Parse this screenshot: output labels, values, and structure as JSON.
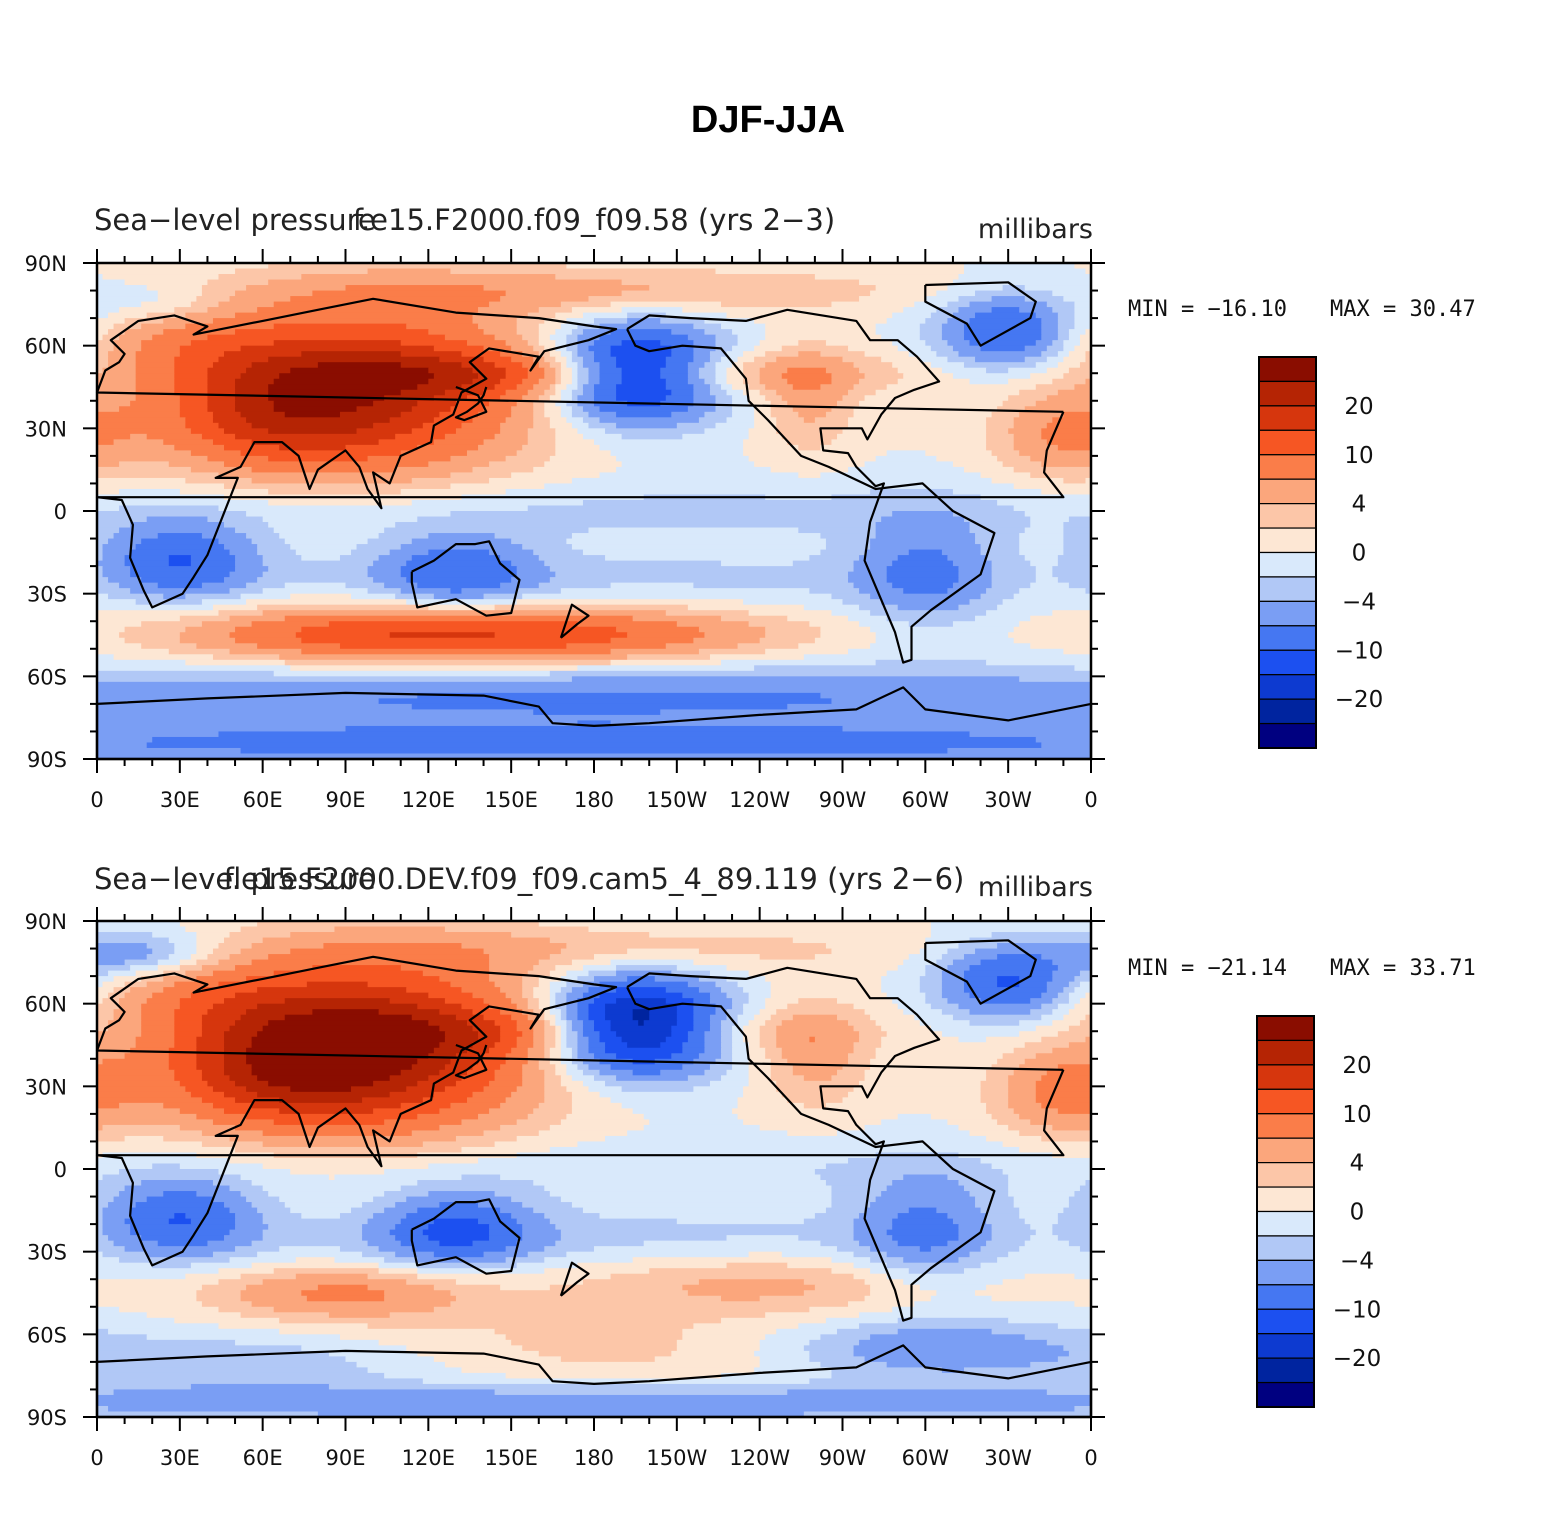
{
  "figure_title": "DJF-JJA",
  "colors": {
    "scale": [
      "#000080",
      "#00249f",
      "#0d3ad0",
      "#1c50f0",
      "#4577f2",
      "#7a9ef4",
      "#b1c8f6",
      "#d9e9fb",
      "#fde7d4",
      "#fcc6a8",
      "#fba67c",
      "#fa7d49",
      "#f65623",
      "#d6360d",
      "#b52404",
      "#8a0d00"
    ],
    "coast": "#000000"
  },
  "chart_data": {
    "type": "filled-contour-map",
    "variable": "Sea-level pressure",
    "units": "millibars",
    "colorbar_labels": [
      "20",
      "10",
      "4",
      "0",
      "−4",
      "−10",
      "−20"
    ],
    "x_ticks": [
      "0",
      "30E",
      "60E",
      "90E",
      "120E",
      "150E",
      "180",
      "150W",
      "120W",
      "90W",
      "60W",
      "30W",
      "0"
    ],
    "y_ticks": [
      "90N",
      "60N",
      "30N",
      "0",
      "30S",
      "60S",
      "90S"
    ],
    "xlim": [
      0,
      360
    ],
    "ylim": [
      -90,
      90
    ],
    "panels": [
      {
        "left_title": "Sea−level pressure",
        "center_title": "f.e15.F2000.f09_f09.58 (yrs 2−3)",
        "right_title": "millibars",
        "min_label": "MIN = −16.10",
        "max_label": "MAX =  30.47",
        "min": -16.1,
        "max": 30.47,
        "features": [
          {
            "lon": 100,
            "lat": 45,
            "sx": 42,
            "sy": 22,
            "amp": 24
          },
          {
            "lon": 60,
            "lat": 35,
            "sx": 30,
            "sy": 14,
            "amp": 14
          },
          {
            "lon": 30,
            "lat": 62,
            "sx": 30,
            "sy": 10,
            "amp": 8
          },
          {
            "lon": 180,
            "lat": 80,
            "sx": 80,
            "sy": 6,
            "amp": 7
          },
          {
            "lon": 258,
            "lat": 40,
            "sx": 12,
            "sy": 14,
            "amp": 7
          },
          {
            "lon": 350,
            "lat": 28,
            "sx": 18,
            "sy": 12,
            "amp": 10
          },
          {
            "lon": 180,
            "lat": 50,
            "sx": 70,
            "sy": 6,
            "amp": 12
          },
          {
            "lon": 195,
            "lat": 50,
            "sx": 22,
            "sy": 12,
            "amp": -30
          },
          {
            "lon": 330,
            "lat": 65,
            "sx": 18,
            "sy": 10,
            "amp": -16
          },
          {
            "lon": 22,
            "lat": 75,
            "sx": 18,
            "sy": 6,
            "amp": -5
          },
          {
            "lon": 180,
            "lat": 0,
            "sx": 200,
            "sy": 8,
            "amp": -4
          },
          {
            "lon": 30,
            "lat": -18,
            "sx": 20,
            "sy": 10,
            "amp": -14
          },
          {
            "lon": 130,
            "lat": -22,
            "sx": 20,
            "sy": 10,
            "amp": -12
          },
          {
            "lon": 300,
            "lat": -22,
            "sx": 18,
            "sy": 14,
            "amp": -10
          },
          {
            "lon": 180,
            "lat": -25,
            "sx": 120,
            "sy": 8,
            "amp": -4
          },
          {
            "lon": 100,
            "lat": -45,
            "sx": 50,
            "sy": 8,
            "amp": 14
          },
          {
            "lon": 180,
            "lat": -45,
            "sx": 50,
            "sy": 8,
            "amp": 10
          },
          {
            "lon": 140,
            "lat": -45,
            "sx": 80,
            "sy": 6,
            "amp": 4
          },
          {
            "lon": 180,
            "lat": -68,
            "sx": 200,
            "sy": 9,
            "amp": -11
          },
          {
            "lon": 180,
            "lat": -85,
            "sx": 200,
            "sy": 5,
            "amp": -12
          }
        ]
      },
      {
        "left_title": "Sea−level pressure",
        "center_title": "f.e15.F2000.DEV.f09_f09.cam5_4_89.119 (yrs 2−6)",
        "right_title": "millibars",
        "min_label": "MIN = −21.14",
        "max_label": "MAX =  33.71",
        "min": -21.14,
        "max": 33.71,
        "features": [
          {
            "lon": 100,
            "lat": 45,
            "sx": 42,
            "sy": 22,
            "amp": 30
          },
          {
            "lon": 60,
            "lat": 35,
            "sx": 30,
            "sy": 14,
            "amp": 14
          },
          {
            "lon": 40,
            "lat": 62,
            "sx": 30,
            "sy": 10,
            "amp": 8
          },
          {
            "lon": 180,
            "lat": 80,
            "sx": 80,
            "sy": 6,
            "amp": 5
          },
          {
            "lon": 260,
            "lat": 42,
            "sx": 14,
            "sy": 14,
            "amp": 8
          },
          {
            "lon": 350,
            "lat": 28,
            "sx": 18,
            "sy": 12,
            "amp": 11
          },
          {
            "lon": 180,
            "lat": 50,
            "sx": 60,
            "sy": 6,
            "amp": 8
          },
          {
            "lon": 195,
            "lat": 52,
            "sx": 22,
            "sy": 12,
            "amp": -34
          },
          {
            "lon": 330,
            "lat": 68,
            "sx": 18,
            "sy": 10,
            "amp": -16
          },
          {
            "lon": 15,
            "lat": 78,
            "sx": 20,
            "sy": 6,
            "amp": -10
          },
          {
            "lon": 180,
            "lat": 0,
            "sx": 200,
            "sy": 8,
            "amp": -3
          },
          {
            "lon": 30,
            "lat": -18,
            "sx": 20,
            "sy": 10,
            "amp": -14
          },
          {
            "lon": 130,
            "lat": -22,
            "sx": 20,
            "sy": 10,
            "amp": -14
          },
          {
            "lon": 300,
            "lat": -22,
            "sx": 18,
            "sy": 14,
            "amp": -10
          },
          {
            "lon": 180,
            "lat": -25,
            "sx": 120,
            "sy": 8,
            "amp": -4
          },
          {
            "lon": 90,
            "lat": -45,
            "sx": 35,
            "sy": 7,
            "amp": 11
          },
          {
            "lon": 240,
            "lat": -42,
            "sx": 50,
            "sy": 8,
            "amp": 7
          },
          {
            "lon": 180,
            "lat": -65,
            "sx": 80,
            "sy": 10,
            "amp": 4
          },
          {
            "lon": 300,
            "lat": -65,
            "sx": 40,
            "sy": 8,
            "amp": -10
          },
          {
            "lon": 60,
            "lat": -70,
            "sx": 50,
            "sy": 8,
            "amp": -6
          },
          {
            "lon": 180,
            "lat": -85,
            "sx": 200,
            "sy": 5,
            "amp": -9
          }
        ]
      }
    ]
  }
}
